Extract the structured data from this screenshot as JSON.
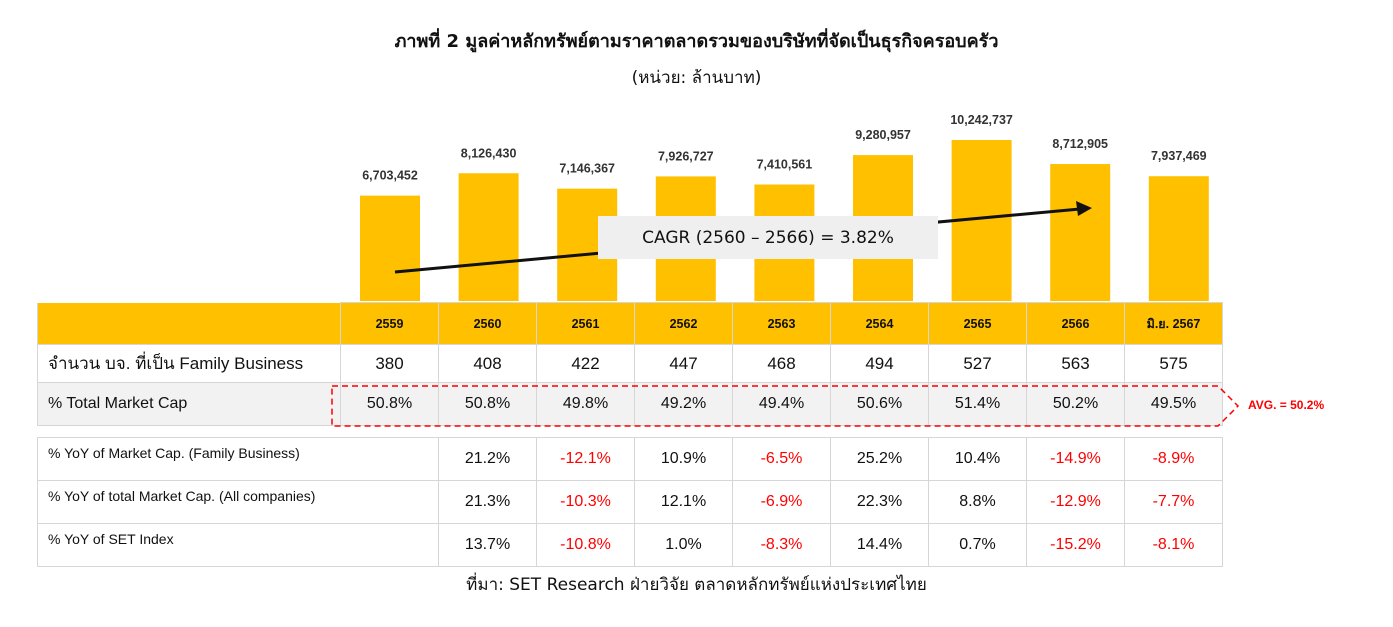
{
  "title": "ภาพที่ 2 มูลค่าหลักทรัพย์ตามราคาตลาดรวมของบริษัทที่จัดเป็นธุรกิจครอบครัว",
  "subtitle": "(หน่วย: ล้านบาท)",
  "chart_data": {
    "type": "bar",
    "categories": [
      "2559",
      "2560",
      "2561",
      "2562",
      "2563",
      "2564",
      "2565",
      "2566",
      "มิ.ย. 2567"
    ],
    "values": [
      6703452,
      8126430,
      7146367,
      7926727,
      7410561,
      9280957,
      10242737,
      8712905,
      7937469
    ],
    "value_labels": [
      "6,703,452",
      "8,126,430",
      "7,146,367",
      "7,926,727",
      "7,410,561",
      "9,280,957",
      "10,242,737",
      "8,712,905",
      "7,937,469"
    ],
    "bar_color": "#FFC000",
    "annotation": "CAGR (2560 – 2566) = 3.82%"
  },
  "table": {
    "row_family_label": "จำนวน บจ. ที่เป็น Family Business",
    "row_family": [
      "380",
      "408",
      "422",
      "447",
      "468",
      "494",
      "527",
      "563",
      "575"
    ],
    "row_mktcap_label": "% Total Market Cap",
    "row_mktcap": [
      "50.8%",
      "50.8%",
      "49.8%",
      "49.2%",
      "49.4%",
      "50.6%",
      "51.4%",
      "50.2%",
      "49.5%"
    ],
    "avg_label": "AVG. = 50.2%"
  },
  "yoy": {
    "rows": [
      {
        "label": "% YoY of Market Cap. (Family Business)",
        "values": [
          "",
          "21.2%",
          "-12.1%",
          "10.9%",
          "-6.5%",
          "25.2%",
          "10.4%",
          "-14.9%",
          "-8.9%"
        ]
      },
      {
        "label": "% YoY of total Market Cap. (All companies)",
        "values": [
          "",
          "21.3%",
          "-10.3%",
          "12.1%",
          "-6.9%",
          "22.3%",
          "8.8%",
          "-12.9%",
          "-7.7%"
        ]
      },
      {
        "label": "% YoY of SET Index",
        "values": [
          "",
          "13.7%",
          "-10.8%",
          "1.0%",
          "-8.3%",
          "14.4%",
          "0.7%",
          "-15.2%",
          "-8.1%"
        ]
      }
    ]
  },
  "source": "ที่มา: SET Research ฝ่ายวิจัย ตลาดหลักทรัพย์แห่งประเทศไทย",
  "colors": {
    "accent": "#FFC000",
    "negative": "#ff0000"
  }
}
